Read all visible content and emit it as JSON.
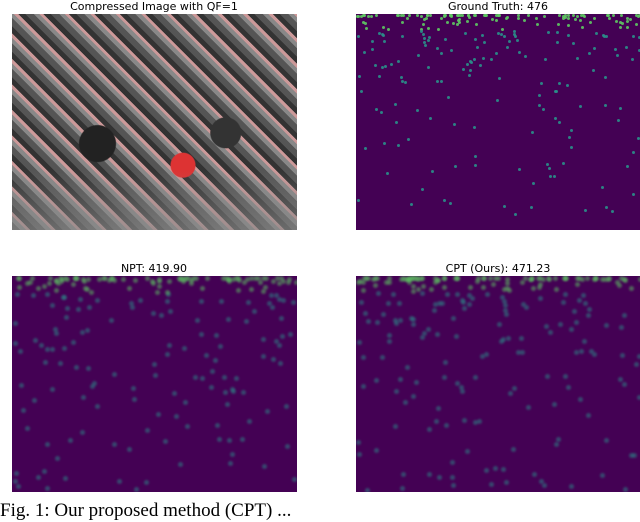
{
  "panels": [
    {
      "title": "Compressed Image with QF=1"
    },
    {
      "title": "Ground Truth: 476"
    },
    {
      "title": "NPT: 419.90"
    },
    {
      "title": "CPT (Ours): 471.23"
    }
  ],
  "colormap": {
    "background": "#440154",
    "hot": "#35b779",
    "mid": "#31688e"
  },
  "caption": "Fig. 1: Our proposed method (CPT) ... "
}
